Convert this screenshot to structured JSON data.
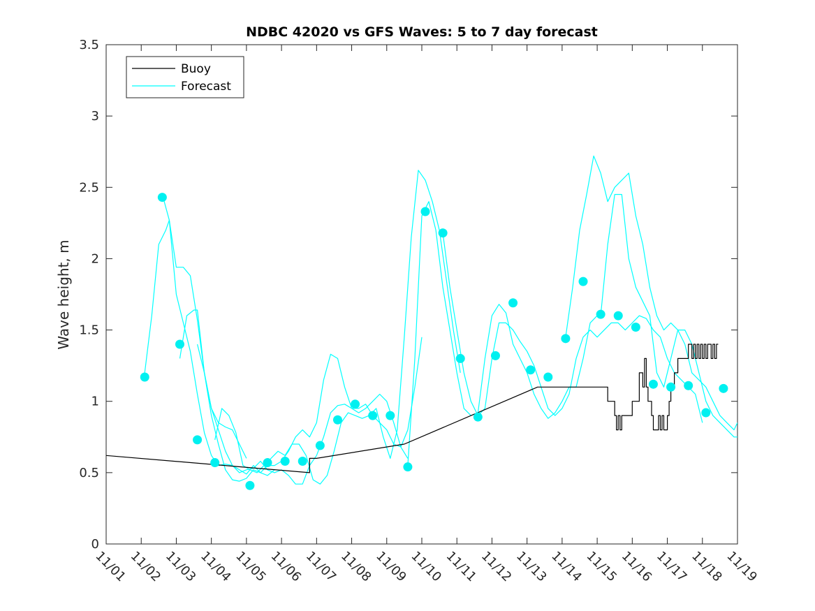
{
  "chart_data": {
    "type": "line",
    "title": "NDBC 42020 vs GFS Waves: 5 to 7 day forecast",
    "xlabel": "",
    "ylabel": "Wave height, m",
    "xlim": [
      0,
      18
    ],
    "ylim": [
      0,
      3.5
    ],
    "x_ticks": [
      0,
      1,
      2,
      3,
      4,
      5,
      6,
      7,
      8,
      9,
      10,
      11,
      12,
      13,
      14,
      15,
      16,
      17,
      18
    ],
    "x_tick_labels": [
      "11/01",
      "11/02",
      "11/03",
      "11/04",
      "11/05",
      "11/06",
      "11/07",
      "11/08",
      "11/09",
      "11/10",
      "11/11",
      "11/12",
      "11/13",
      "11/14",
      "11/15",
      "11/16",
      "11/17",
      "11/18",
      "11/19"
    ],
    "y_ticks": [
      0,
      0.5,
      1,
      1.5,
      2,
      2.5,
      3,
      3.5
    ],
    "y_tick_labels": [
      "0",
      "0.5",
      "1",
      "1.5",
      "2",
      "2.5",
      "3",
      "3.5"
    ],
    "grid": false,
    "legend": {
      "placement": "top-left",
      "entries": [
        "Buoy",
        "Forecast"
      ]
    },
    "colors": {
      "buoy": "#000000",
      "forecast": "#00ffff",
      "marker": "#00f0f0",
      "axes": "#262626"
    },
    "series": [
      {
        "name": "Buoy",
        "color": "#000000",
        "x": [
          0.0,
          5.8,
          5.8,
          6.0,
          8.5,
          12.3,
          14.3,
          14.3,
          14.5,
          14.5,
          14.55,
          14.55,
          14.6,
          14.6,
          14.65,
          14.65,
          14.7,
          14.7,
          15.0,
          15.0,
          15.2,
          15.2,
          15.3,
          15.3,
          15.35,
          15.35,
          15.4,
          15.4,
          15.45,
          15.45,
          15.55,
          15.55,
          15.6,
          15.6,
          15.75,
          15.75,
          15.8,
          15.8,
          15.85,
          15.85,
          15.9,
          15.9,
          15.95,
          15.95,
          16.0,
          16.0,
          16.05,
          16.05,
          16.1,
          16.1,
          16.2,
          16.2,
          16.3,
          16.3,
          16.6,
          16.6,
          16.7,
          16.7,
          16.75,
          16.75,
          16.8,
          16.8,
          16.85,
          16.85,
          16.9,
          16.9,
          16.95,
          16.95,
          17.0,
          17.0,
          17.05,
          17.05,
          17.1,
          17.1,
          17.15,
          17.15,
          17.2,
          17.2,
          17.25,
          17.25,
          17.3,
          17.3,
          17.35,
          17.35,
          17.4,
          17.4,
          17.45
        ],
        "y": [
          0.62,
          0.5,
          0.6,
          0.6,
          0.7,
          1.1,
          1.1,
          1.0,
          1.0,
          0.9,
          0.9,
          0.8,
          0.8,
          0.9,
          0.9,
          0.8,
          0.8,
          0.9,
          0.9,
          1.0,
          1.0,
          1.2,
          1.2,
          1.1,
          1.1,
          1.3,
          1.3,
          1.1,
          1.1,
          1.0,
          1.0,
          0.9,
          0.9,
          0.8,
          0.8,
          0.9,
          0.9,
          0.8,
          0.8,
          0.9,
          0.9,
          0.8,
          0.8,
          0.8,
          0.8,
          0.9,
          0.9,
          1.0,
          1.0,
          1.1,
          1.1,
          1.2,
          1.2,
          1.3,
          1.3,
          1.4,
          1.4,
          1.3,
          1.3,
          1.4,
          1.4,
          1.3,
          1.3,
          1.4,
          1.4,
          1.3,
          1.3,
          1.4,
          1.4,
          1.3,
          1.3,
          1.4,
          1.4,
          1.3,
          1.3,
          1.4,
          1.4,
          1.4,
          1.4,
          1.3,
          1.3,
          1.4,
          1.4,
          1.3,
          1.3,
          1.4,
          1.4
        ]
      },
      {
        "name": "Forecast",
        "color": "#00ffff",
        "x": [
          1.1,
          1.3,
          1.5,
          1.7,
          1.8,
          2.0,
          2.2,
          2.4,
          2.6,
          2.8,
          3.0,
          3.2,
          3.4,
          3.6,
          3.8,
          4.0
        ],
        "y": [
          1.2,
          1.6,
          2.1,
          2.2,
          2.27,
          1.94,
          1.94,
          1.88,
          1.57,
          1.2,
          0.95,
          0.85,
          0.82,
          0.8,
          0.7,
          0.6
        ]
      },
      {
        "name": "Forecast",
        "color": "#00ffff",
        "x": [
          1.6,
          1.8,
          2.0,
          2.2,
          2.4,
          2.6,
          2.8,
          3.0,
          3.2,
          3.4,
          3.6,
          3.8,
          4.0,
          4.2,
          4.4,
          4.6,
          4.8
        ],
        "y": [
          2.45,
          2.27,
          1.75,
          1.55,
          1.35,
          1.05,
          0.78,
          0.62,
          0.55,
          0.56,
          0.55,
          0.52,
          0.49,
          0.55,
          0.5,
          0.48,
          0.52
        ]
      },
      {
        "name": "Forecast",
        "color": "#00ffff",
        "x": [
          2.1,
          2.3,
          2.5,
          2.6,
          2.8,
          3.0,
          3.2,
          3.4,
          3.6,
          3.8,
          4.0,
          4.2,
          4.4,
          4.6,
          4.8,
          5.0,
          5.2,
          5.4,
          5.6,
          5.8,
          6.0,
          6.2,
          6.4,
          6.6,
          6.8,
          7.0,
          7.2,
          7.4,
          7.6,
          7.8,
          8.0,
          8.2,
          8.4,
          8.6,
          8.8,
          9.0
        ],
        "y": [
          1.3,
          1.6,
          1.64,
          1.64,
          1.2,
          0.95,
          0.8,
          0.65,
          0.55,
          0.5,
          0.52,
          0.53,
          0.58,
          0.52,
          0.5,
          0.52,
          0.48,
          0.42,
          0.42,
          0.55,
          0.62,
          0.75,
          0.92,
          0.97,
          0.98,
          0.95,
          0.95,
          0.98,
          0.9,
          0.85,
          0.8,
          0.7,
          0.68,
          0.8,
          1.1,
          1.45
        ]
      },
      {
        "name": "Forecast",
        "color": "#00ffff",
        "x": [
          2.6,
          2.8,
          3.0,
          3.2,
          3.4,
          3.6,
          3.8,
          4.0,
          4.2,
          4.4,
          4.6,
          4.8,
          5.0,
          5.2,
          5.4,
          5.6,
          5.8,
          6.0,
          6.2,
          6.4,
          6.6,
          6.8,
          7.0,
          7.2,
          7.4,
          7.6,
          7.8,
          8.0,
          8.2,
          8.4,
          8.6
        ],
        "y": [
          1.4,
          1.2,
          0.9,
          0.7,
          0.52,
          0.45,
          0.44,
          0.46,
          0.52,
          0.5,
          0.55,
          0.55,
          0.58,
          0.65,
          0.75,
          0.8,
          0.75,
          0.85,
          1.15,
          1.33,
          1.3,
          1.1,
          0.95,
          0.92,
          0.95,
          1.0,
          1.05,
          1.0,
          0.85,
          0.68,
          0.6
        ]
      },
      {
        "name": "Forecast",
        "color": "#00ffff",
        "x": [
          3.1,
          3.3,
          3.5,
          3.7,
          3.9,
          4.1,
          4.3,
          4.5,
          4.7,
          4.9,
          5.1,
          5.3,
          5.5,
          5.7,
          5.9,
          6.1,
          6.3,
          6.5,
          6.7,
          6.9,
          7.1,
          7.3,
          7.5,
          7.7,
          7.9,
          8.1,
          8.3,
          8.5,
          8.7,
          8.9,
          9.1,
          9.3,
          9.5,
          9.7,
          9.9,
          10.1
        ],
        "y": [
          0.73,
          0.95,
          0.9,
          0.78,
          0.55,
          0.52,
          0.5,
          0.55,
          0.6,
          0.65,
          0.62,
          0.7,
          0.7,
          0.62,
          0.45,
          0.42,
          0.48,
          0.65,
          0.85,
          0.92,
          0.9,
          0.88,
          0.9,
          0.95,
          0.75,
          0.6,
          0.8,
          1.45,
          2.15,
          2.62,
          2.55,
          2.4,
          2.2,
          1.85,
          1.5,
          1.2
        ]
      },
      {
        "name": "Forecast",
        "color": "#00ffff",
        "x": [
          8.6,
          8.8,
          9.0,
          9.2,
          9.4,
          9.6,
          9.8,
          10.0,
          10.2,
          10.4,
          10.6,
          10.8,
          11.0,
          11.2,
          11.4,
          11.6,
          11.8,
          12.0,
          12.2,
          12.4,
          12.6,
          12.8,
          13.0,
          13.2,
          13.4,
          13.6,
          13.8,
          14.0
        ],
        "y": [
          0.55,
          1.3,
          2.3,
          2.4,
          2.2,
          1.8,
          1.5,
          1.2,
          0.95,
          0.9,
          0.92,
          1.3,
          1.6,
          1.68,
          1.62,
          1.4,
          1.3,
          1.2,
          1.05,
          0.95,
          0.88,
          0.92,
          1.0,
          1.1,
          1.1,
          1.3,
          1.55,
          1.6
        ]
      },
      {
        "name": "Forecast",
        "color": "#00ffff",
        "x": [
          9.6,
          9.8,
          10.0,
          10.2,
          10.4,
          10.6,
          10.8,
          11.0,
          11.2,
          11.4,
          11.6,
          11.8,
          12.0,
          12.2,
          12.4,
          12.6,
          12.8,
          13.0,
          13.2,
          13.4,
          13.6,
          13.8,
          14.0,
          14.2,
          14.4,
          14.6,
          14.8,
          15.0,
          15.2,
          15.4,
          15.6,
          15.8,
          16.0,
          16.2,
          16.4,
          16.6,
          16.8,
          17.0
        ],
        "y": [
          2.18,
          1.8,
          1.5,
          1.2,
          1.0,
          0.9,
          0.95,
          1.3,
          1.55,
          1.55,
          1.5,
          1.42,
          1.35,
          1.25,
          1.1,
          0.95,
          0.9,
          0.95,
          1.05,
          1.3,
          1.45,
          1.5,
          1.45,
          1.5,
          1.55,
          1.55,
          1.5,
          1.55,
          1.6,
          1.58,
          1.5,
          1.45,
          1.3,
          1.2,
          1.15,
          1.1,
          1.05,
          0.85
        ]
      },
      {
        "name": "Forecast",
        "color": "#00ffff",
        "x": [
          13.1,
          13.3,
          13.5,
          13.7,
          13.9,
          14.1,
          14.3,
          14.5,
          14.7,
          14.9,
          15.1,
          15.3,
          15.5,
          15.7,
          15.9,
          16.1,
          16.3,
          16.5,
          16.7,
          16.9,
          17.1,
          17.3,
          17.5,
          17.7,
          17.9,
          18.0
        ],
        "y": [
          1.45,
          1.8,
          2.2,
          2.45,
          2.72,
          2.6,
          2.4,
          2.5,
          2.55,
          2.6,
          2.3,
          2.1,
          1.8,
          1.6,
          1.5,
          1.55,
          1.5,
          1.4,
          1.2,
          1.15,
          1.1,
          1.0,
          0.9,
          0.85,
          0.8,
          0.85
        ]
      },
      {
        "name": "Forecast",
        "color": "#00ffff",
        "x": [
          14.1,
          14.3,
          14.5,
          14.7,
          14.9,
          15.1,
          15.3,
          15.5,
          15.7,
          15.9,
          16.1,
          16.3,
          16.5,
          16.7,
          16.9,
          17.1,
          17.3,
          17.5,
          17.7,
          17.9,
          18.0
        ],
        "y": [
          1.6,
          2.1,
          2.45,
          2.45,
          2.0,
          1.8,
          1.7,
          1.6,
          1.2,
          1.1,
          1.3,
          1.5,
          1.5,
          1.4,
          1.2,
          1.0,
          0.9,
          0.85,
          0.8,
          0.75,
          0.75
        ]
      }
    ],
    "markers": {
      "x": [
        1.1,
        1.6,
        2.1,
        2.6,
        3.1,
        4.1,
        4.6,
        5.1,
        5.6,
        6.1,
        6.6,
        7.1,
        7.6,
        8.1,
        8.6,
        9.1,
        9.6,
        10.1,
        10.6,
        11.1,
        11.6,
        12.1,
        12.6,
        13.1,
        13.6,
        14.1,
        14.6,
        15.1,
        15.6,
        16.1,
        16.6,
        17.1,
        17.6
      ],
      "y": [
        1.17,
        2.43,
        1.4,
        0.73,
        0.57,
        0.41,
        0.57,
        0.58,
        0.58,
        0.69,
        0.87,
        0.98,
        0.9,
        0.9,
        0.54,
        2.33,
        2.18,
        1.3,
        0.89,
        1.32,
        1.69,
        1.22,
        1.17,
        1.44,
        1.84,
        1.61,
        1.6,
        1.52,
        1.12,
        1.1,
        1.11,
        0.92,
        1.09
      ]
    }
  }
}
